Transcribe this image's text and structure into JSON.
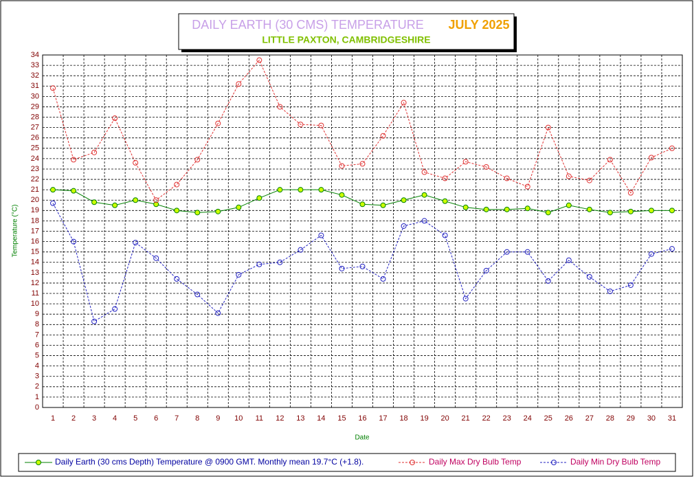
{
  "chart_data": {
    "type": "line",
    "title": "DAILY EARTH (30 CMS) TEMPERATURE",
    "title_period": "JULY 2025",
    "subtitle": "LITTLE PAXTON, CAMBRIDGESHIRE",
    "y_label": "Temperature (°C)",
    "x_label": "Date",
    "categories": [
      "1",
      "2",
      "3",
      "4",
      "5",
      "6",
      "7",
      "8",
      "9",
      "10",
      "11",
      "12",
      "13",
      "14",
      "15",
      "16",
      "17",
      "18",
      "19",
      "20",
      "21",
      "22",
      "23",
      "24",
      "25",
      "26",
      "27",
      "28",
      "29",
      "30",
      "31"
    ],
    "ylim": [
      0,
      34
    ],
    "yticks": [
      0,
      1,
      2,
      3,
      4,
      5,
      6,
      7,
      8,
      9,
      10,
      11,
      12,
      13,
      14,
      15,
      16,
      17,
      18,
      19,
      20,
      21,
      22,
      23,
      24,
      25,
      26,
      27,
      28,
      29,
      30,
      31,
      32,
      33,
      34
    ],
    "grid": true,
    "series": [
      {
        "name": "Daily Earth (30 cms Depth) Temperature @ 0900 GMT. Monthly mean 19.7°C (+1.8).",
        "color": "#008000",
        "marker_fill": "#ccff00",
        "dashed": false,
        "values": [
          21.0,
          20.9,
          19.8,
          19.5,
          20.0,
          19.6,
          19.0,
          18.8,
          18.9,
          19.3,
          20.2,
          21.0,
          21.0,
          21.0,
          20.5,
          19.6,
          19.5,
          20.0,
          20.5,
          19.9,
          19.3,
          19.1,
          19.1,
          19.2,
          18.8,
          19.5,
          19.1,
          18.8,
          18.9,
          19.0,
          19.0
        ]
      },
      {
        "name": "Daily Max Dry Bulb Temp",
        "color": "#e03030",
        "marker_fill": "none",
        "dashed": true,
        "values": [
          30.8,
          23.9,
          24.6,
          27.9,
          23.6,
          20.0,
          21.5,
          23.9,
          27.4,
          31.2,
          33.5,
          29.0,
          27.3,
          27.2,
          23.3,
          23.5,
          26.2,
          29.4,
          22.7,
          22.1,
          23.7,
          23.2,
          22.1,
          21.3,
          27.0,
          22.3,
          21.9,
          23.9,
          20.7,
          24.1,
          25.0
        ]
      },
      {
        "name": "Daily Min Dry Bulb Temp",
        "color": "#2020c0",
        "marker_fill": "none",
        "dashed": true,
        "values": [
          19.7,
          16.0,
          8.3,
          9.5,
          15.9,
          14.4,
          12.4,
          10.9,
          9.1,
          12.8,
          13.8,
          14.0,
          15.2,
          16.6,
          13.4,
          13.6,
          12.4,
          17.5,
          18.0,
          16.6,
          10.5,
          13.2,
          15.0,
          15.0,
          12.2,
          14.2,
          12.6,
          11.2,
          11.8,
          14.8,
          15.3
        ]
      }
    ]
  }
}
